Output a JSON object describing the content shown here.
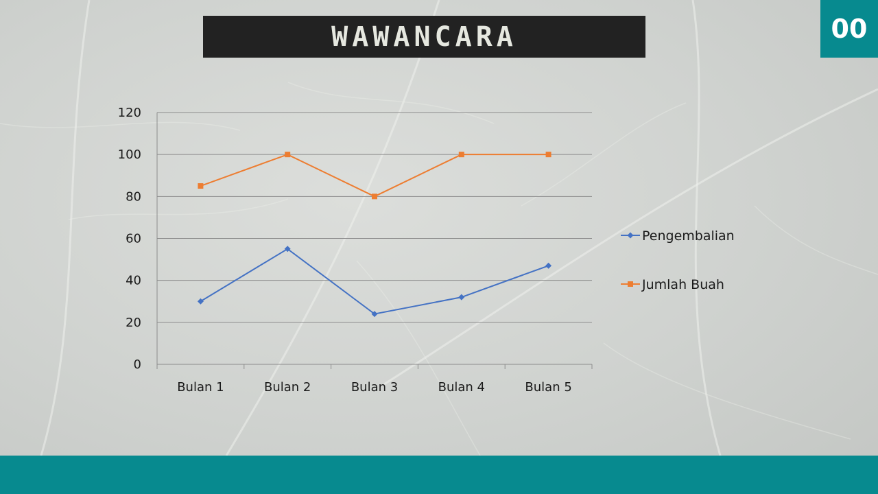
{
  "header": {
    "title": "WAWANCARA",
    "page_number": "00"
  },
  "colors": {
    "accent": "#078a8f",
    "title_bg": "#222222",
    "series_blue": "#4472c4",
    "series_orange": "#ed7d31"
  },
  "chart_data": {
    "type": "line",
    "title": "",
    "xlabel": "",
    "ylabel": "",
    "categories": [
      "Bulan 1",
      "Bulan 2",
      "Bulan 3",
      "Bulan 4",
      "Bulan 5"
    ],
    "series": [
      {
        "name": "Pengembalian",
        "values": [
          30,
          55,
          24,
          32,
          47
        ],
        "color": "#4472c4",
        "marker": "diamond"
      },
      {
        "name": "Jumlah Buah",
        "values": [
          85,
          100,
          80,
          100,
          100
        ],
        "color": "#ed7d31",
        "marker": "square"
      }
    ],
    "ylim": [
      0,
      120
    ],
    "yticks": [
      "0",
      "20",
      "40",
      "60",
      "80",
      "100",
      "120"
    ],
    "grid": true,
    "legend": "right"
  }
}
